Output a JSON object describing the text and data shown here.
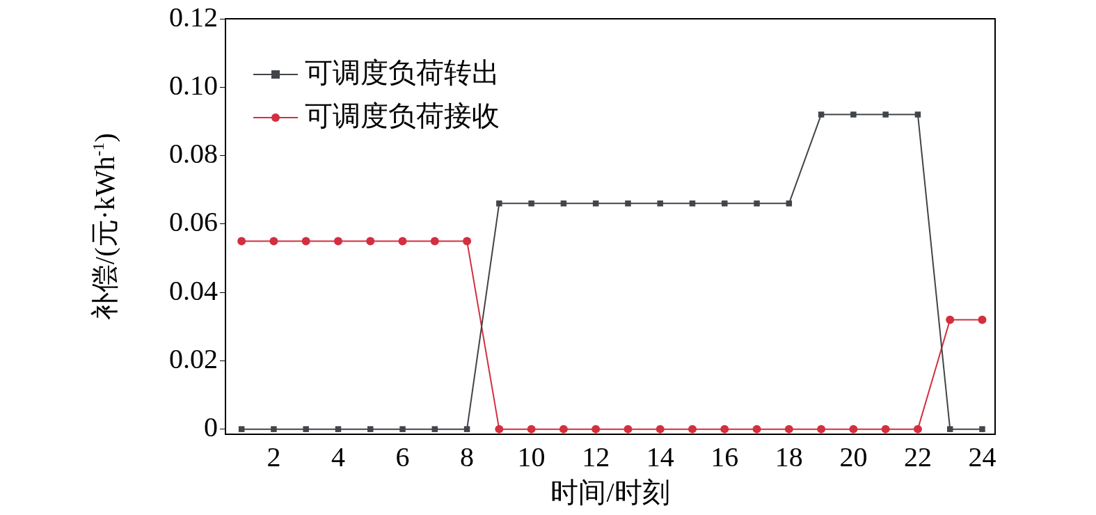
{
  "chart_data": {
    "type": "line",
    "xlabel": "时间/时刻",
    "ylabel": "补偿/(元·kWh$^{-1}$)",
    "x": [
      1,
      2,
      3,
      4,
      5,
      6,
      7,
      8,
      9,
      10,
      11,
      12,
      13,
      14,
      15,
      16,
      17,
      18,
      19,
      20,
      21,
      22,
      23,
      24
    ],
    "series": [
      {
        "name": "可调度负荷转出",
        "color": "#414449",
        "marker": "square",
        "values": [
          0,
          0,
          0,
          0,
          0,
          0,
          0,
          0,
          0.066,
          0.066,
          0.066,
          0.066,
          0.066,
          0.066,
          0.066,
          0.066,
          0.066,
          0.066,
          0.092,
          0.092,
          0.092,
          0.092,
          0,
          0
        ]
      },
      {
        "name": "可调度负荷接收",
        "color": "#d32f3f",
        "marker": "circle",
        "values": [
          0.055,
          0.055,
          0.055,
          0.055,
          0.055,
          0.055,
          0.055,
          0.055,
          0,
          0,
          0,
          0,
          0,
          0,
          0,
          0,
          0,
          0,
          0,
          0,
          0,
          0,
          0.032,
          0.032
        ]
      }
    ],
    "xlim": [
      0.5,
      24.4
    ],
    "xticks": [
      2,
      4,
      6,
      8,
      10,
      12,
      14,
      16,
      18,
      20,
      22,
      24
    ],
    "ylim": [
      -0.0015,
      0.12
    ],
    "yticks": [
      0,
      0.02,
      0.04,
      0.06,
      0.08,
      {
        "value": 0.1,
        "label": "0.10"
      },
      0.12
    ],
    "grid": false,
    "legend": "top left",
    "line_style": "solid"
  }
}
